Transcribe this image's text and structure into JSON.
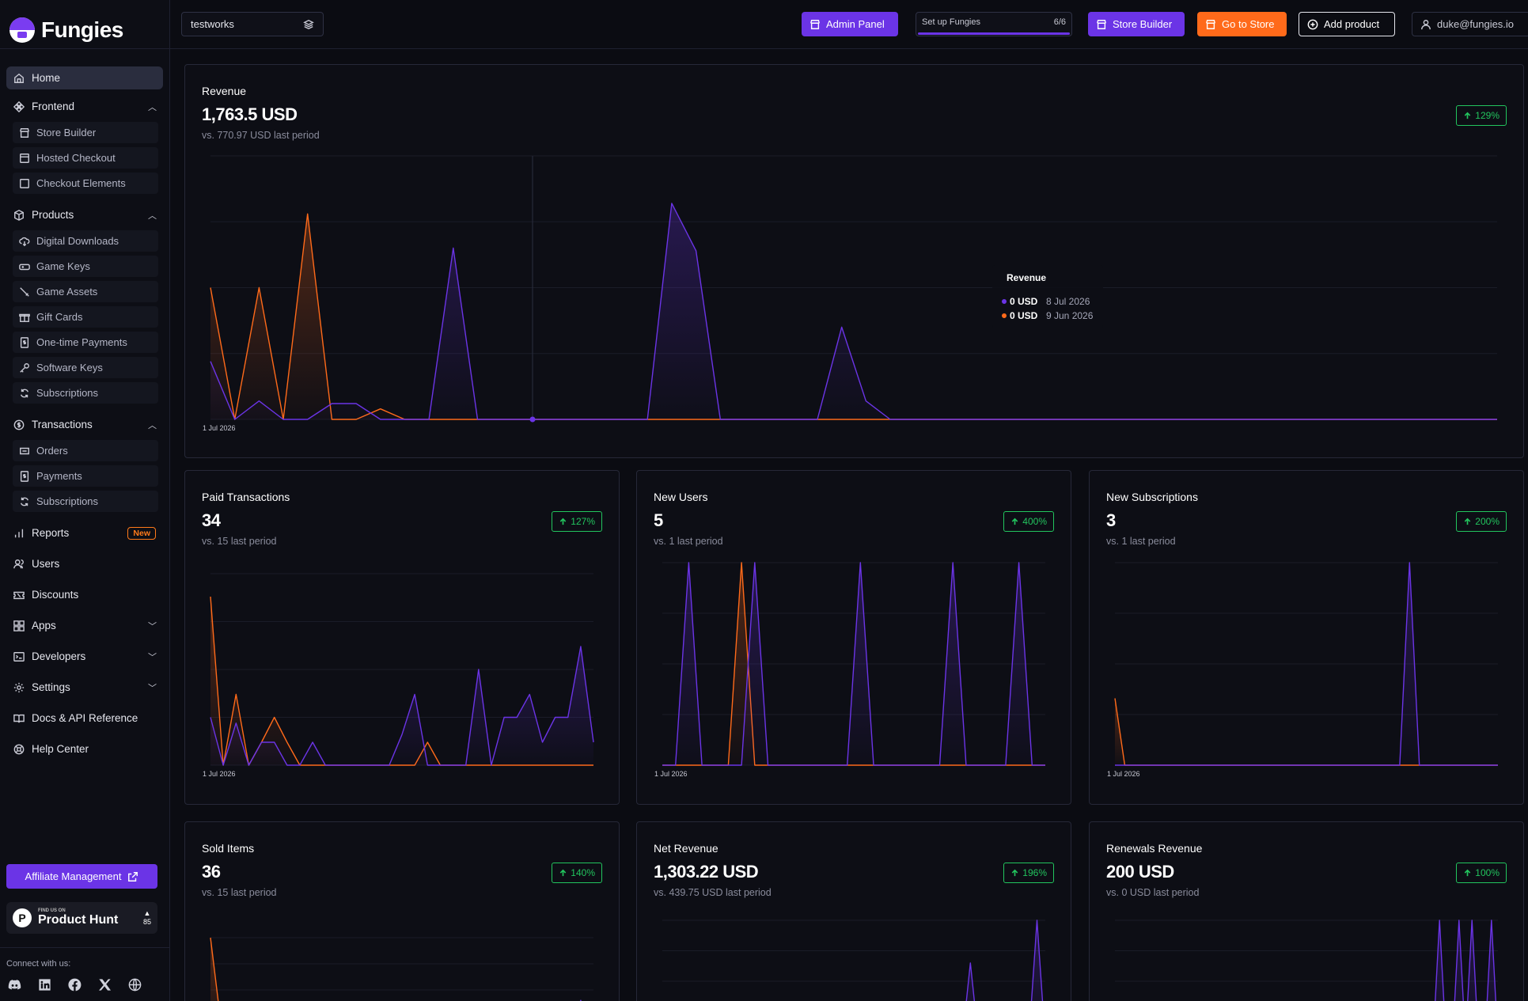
{
  "app": {
    "name": "Fungies"
  },
  "topbar": {
    "store_name": "testworks",
    "admin_panel": "Admin Panel",
    "setup_label": "Set up Fungies",
    "setup_count": "6/6",
    "setup_progress": 1.0,
    "store_builder": "Store Builder",
    "go_to_store": "Go to Store",
    "add_product": "Add product",
    "user_email": "duke@fungies.io"
  },
  "sidebar": {
    "home": "Home",
    "frontend": {
      "label": "Frontend",
      "items": [
        "Store Builder",
        "Hosted Checkout",
        "Checkout Elements"
      ]
    },
    "products": {
      "label": "Products",
      "items": [
        "Digital Downloads",
        "Game Keys",
        "Game Assets",
        "Gift Cards",
        "One-time Payments",
        "Software Keys",
        "Subscriptions"
      ]
    },
    "transactions": {
      "label": "Transactions",
      "items": [
        "Orders",
        "Payments",
        "Subscriptions"
      ]
    },
    "reports": "Reports",
    "reports_badge": "New",
    "users": "Users",
    "discounts": "Discounts",
    "apps": "Apps",
    "developers": "Developers",
    "settings": "Settings",
    "docs": "Docs & API Reference",
    "help": "Help Center",
    "affiliate": "Affiliate Management",
    "producthunt": {
      "small": "FIND US ON",
      "big": "Product Hunt",
      "votes": "85"
    },
    "connect": "Connect with us:",
    "socials": [
      "discord-icon",
      "linkedin-icon",
      "facebook-icon",
      "x-icon",
      "globe-icon"
    ]
  },
  "colors": {
    "current": "#6b34e6",
    "previous": "#ff6a1a",
    "positive": "#22c55e"
  },
  "cards": {
    "revenue": {
      "title": "Revenue",
      "value": "1,763.5 USD",
      "prev": "vs. 770.97 USD last period",
      "pct": "129%",
      "date": "1 Jul 2026",
      "tooltip": {
        "title": "Revenue",
        "current_value": "0 USD",
        "current_date": "8 Jul 2026",
        "previous_value": "0 USD",
        "previous_date": "9 Jun 2026"
      }
    },
    "paid": {
      "title": "Paid Transactions",
      "value": "34",
      "prev": "vs. 15 last period",
      "pct": "127%",
      "date": "1 Jul 2026"
    },
    "new_users": {
      "title": "New Users",
      "value": "5",
      "prev": "vs. 1 last period",
      "pct": "400%",
      "date": "1 Jul 2026"
    },
    "new_subs": {
      "title": "New Subscriptions",
      "value": "3",
      "prev": "vs. 1 last period",
      "pct": "200%",
      "date": "1 Jul 2026"
    },
    "sold": {
      "title": "Sold Items",
      "value": "36",
      "prev": "vs. 15 last period",
      "pct": "140%"
    },
    "net": {
      "title": "Net Revenue",
      "value": "1,303.22 USD",
      "prev": "vs. 439.75 USD last period",
      "pct": "196%"
    },
    "renewals": {
      "title": "Renewals Revenue",
      "value": "200 USD",
      "prev": "vs. 0 USD last period",
      "pct": "100%"
    }
  },
  "chart_data": [
    {
      "id": "revenue",
      "type": "area",
      "ylim": [
        0,
        100
      ],
      "series": [
        {
          "values": [
            22,
            0,
            7,
            0,
            0,
            6,
            6,
            0,
            0,
            0,
            65,
            0,
            0,
            0,
            0,
            0,
            0,
            0,
            0,
            82,
            64,
            0,
            0,
            0,
            0,
            0,
            35,
            7,
            0,
            0,
            0,
            0,
            0,
            0,
            0,
            0,
            0,
            0,
            0,
            0,
            0,
            0,
            0,
            0,
            0,
            0,
            0,
            0,
            0,
            0,
            0,
            0,
            0,
            0
          ]
        },
        {
          "values": [
            50,
            0,
            50,
            0,
            78,
            0,
            0,
            4,
            0,
            0,
            0,
            0,
            0,
            0,
            0,
            0,
            0,
            0,
            0,
            0,
            0,
            0,
            0,
            0,
            0,
            0,
            0,
            0,
            0,
            0,
            0,
            0,
            0,
            0,
            0,
            0,
            0,
            0,
            0,
            0,
            0,
            0,
            0,
            0,
            0,
            0,
            0,
            0,
            0,
            0,
            0,
            0,
            0,
            0
          ]
        }
      ]
    },
    {
      "id": "paid",
      "type": "area",
      "ylim": [
        0,
        100
      ],
      "series": [
        {
          "values": [
            25,
            0,
            22,
            0,
            12,
            12,
            0,
            0,
            12,
            0,
            0,
            0,
            0,
            0,
            0,
            16,
            37,
            0,
            0,
            0,
            0,
            50,
            0,
            25,
            25,
            37,
            12,
            25,
            25,
            62,
            12
          ]
        },
        {
          "values": [
            88,
            0,
            37,
            0,
            12,
            25,
            12,
            0,
            0,
            0,
            0,
            0,
            0,
            0,
            0,
            0,
            0,
            12,
            0,
            0,
            0,
            0,
            0,
            0,
            0,
            0,
            0,
            0,
            0,
            0,
            0
          ]
        }
      ]
    },
    {
      "id": "new_users",
      "type": "area",
      "ylim": [
        0,
        100
      ],
      "series": [
        {
          "values": [
            0,
            0,
            100,
            0,
            0,
            0,
            0,
            100,
            0,
            0,
            0,
            0,
            0,
            0,
            0,
            100,
            0,
            0,
            0,
            0,
            0,
            0,
            100,
            0,
            0,
            0,
            0,
            100,
            0,
            0
          ]
        },
        {
          "values": [
            0,
            0,
            0,
            0,
            0,
            0,
            100,
            0,
            0,
            0,
            0,
            0,
            0,
            0,
            0,
            0,
            0,
            0,
            0,
            0,
            0,
            0,
            0,
            0,
            0,
            0,
            0,
            0,
            0,
            0
          ]
        }
      ]
    },
    {
      "id": "new_subs",
      "type": "area",
      "ylim": [
        0,
        100
      ],
      "series": [
        {
          "values": [
            0,
            0,
            0,
            0,
            0,
            0,
            0,
            0,
            0,
            0,
            0,
            0,
            0,
            0,
            0,
            0,
            0,
            0,
            0,
            0,
            0,
            0,
            0,
            0,
            0,
            0,
            0,
            0,
            0,
            0,
            100,
            0,
            0,
            0,
            0,
            0,
            0,
            0,
            0,
            0
          ]
        },
        {
          "values": [
            33,
            0,
            0,
            0,
            0,
            0,
            0,
            0,
            0,
            0,
            0,
            0,
            0,
            0,
            0,
            0,
            0,
            0,
            0,
            0,
            0,
            0,
            0,
            0,
            0,
            0,
            0,
            0,
            0,
            0,
            0,
            0,
            0,
            0,
            0,
            0,
            0,
            0,
            0,
            0
          ]
        }
      ]
    },
    {
      "id": "sold",
      "type": "area",
      "ylim": [
        0,
        100
      ],
      "series": [
        {
          "values": [
            0,
            0,
            0,
            0,
            0,
            0,
            0,
            0,
            0,
            0,
            0,
            0,
            0,
            0,
            0,
            0,
            0,
            0,
            0,
            0,
            0,
            0,
            0,
            0,
            0,
            0,
            0,
            0,
            0,
            40,
            0
          ]
        },
        {
          "values": [
            100,
            0,
            0,
            0,
            0,
            0,
            0,
            0,
            0,
            0,
            0,
            0,
            0,
            0,
            0,
            0,
            0,
            0,
            0,
            0,
            0,
            0,
            0,
            0,
            0,
            0,
            0,
            0,
            0,
            0,
            0
          ]
        }
      ]
    },
    {
      "id": "net",
      "type": "area",
      "ylim": [
        0,
        100
      ],
      "series": [
        {
          "values": [
            0,
            0,
            0,
            0,
            0,
            0,
            0,
            0,
            0,
            0,
            10,
            0,
            0,
            0,
            0,
            0,
            0,
            0,
            0,
            0,
            0,
            0,
            0,
            0,
            0,
            0,
            0,
            0,
            0,
            0,
            0,
            0,
            0,
            0,
            0,
            0,
            0,
            65,
            0,
            0,
            0,
            0,
            0,
            0,
            0,
            100,
            0
          ]
        },
        {
          "values": [
            0,
            0,
            0,
            0,
            0,
            0,
            0,
            0,
            0,
            0,
            0,
            0,
            0,
            0,
            0,
            0,
            0,
            0,
            0,
            0,
            0,
            0,
            0,
            0,
            0,
            0,
            0,
            0,
            0,
            0,
            0,
            0,
            0,
            0,
            0,
            0,
            0,
            0,
            0,
            0,
            0,
            0,
            0,
            0,
            0,
            0,
            0
          ]
        }
      ]
    },
    {
      "id": "renewals",
      "type": "area",
      "ylim": [
        0,
        100
      ],
      "series": [
        {
          "values": [
            0,
            0,
            0,
            0,
            0,
            0,
            0,
            0,
            0,
            0,
            0,
            0,
            0,
            0,
            0,
            0,
            0,
            0,
            0,
            0,
            0,
            0,
            0,
            0,
            0,
            0,
            0,
            0,
            0,
            0,
            0,
            0,
            0,
            0,
            0,
            0,
            0,
            0,
            0,
            0,
            0,
            0,
            0,
            0,
            0,
            0,
            0,
            0,
            0,
            0,
            100,
            0,
            0,
            100,
            0,
            100,
            0,
            0,
            100,
            0
          ]
        }
      ]
    }
  ]
}
